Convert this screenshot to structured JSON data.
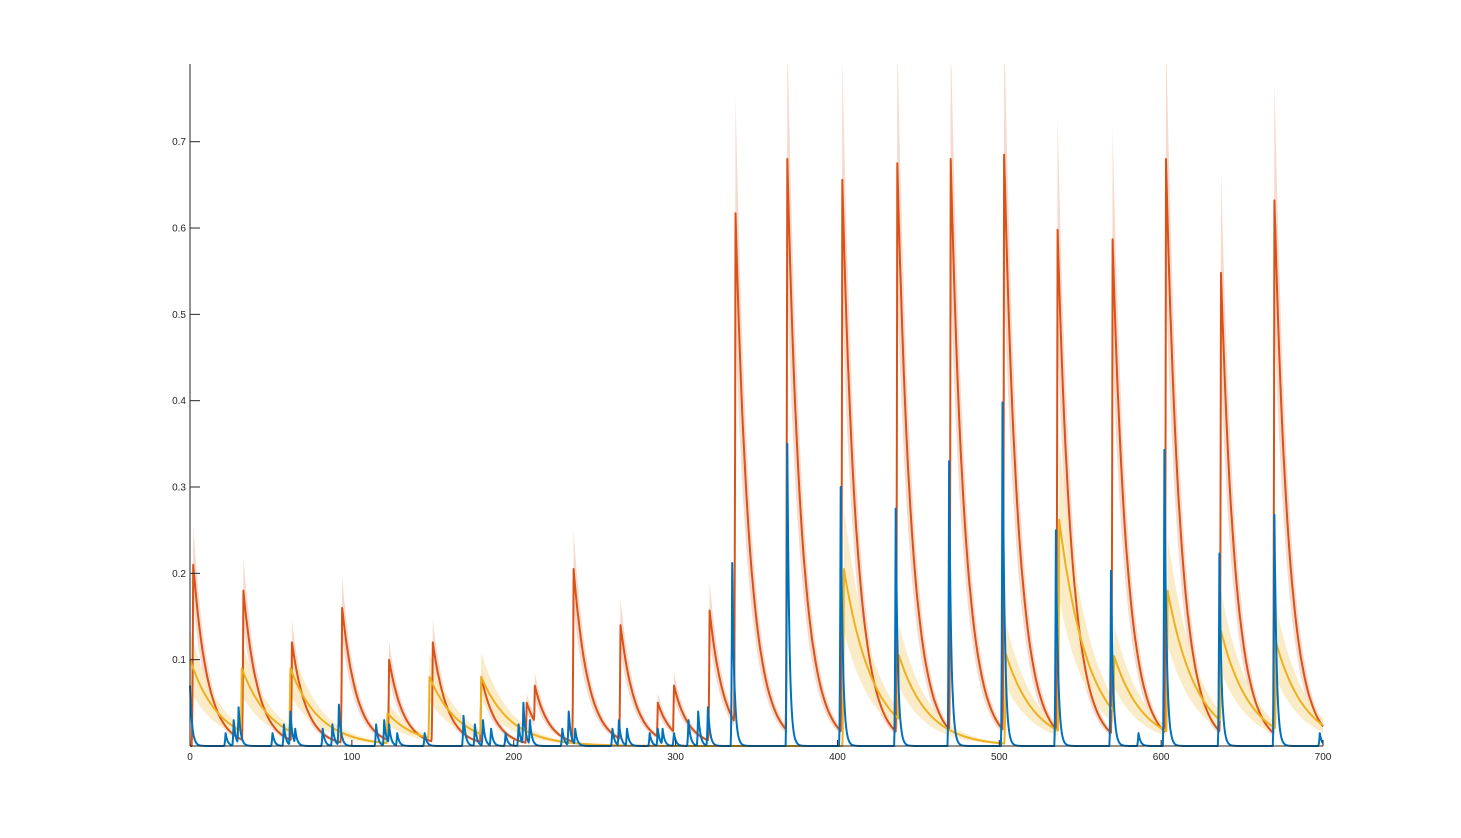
{
  "chart_data": {
    "type": "line",
    "title": "",
    "xlabel": "",
    "ylabel": "",
    "xlim": [
      0,
      700
    ],
    "ylim": [
      0,
      0.79
    ],
    "grid": false,
    "legend": "none",
    "x_ticks": [
      0,
      100,
      200,
      300,
      400,
      500,
      600,
      700
    ],
    "y_ticks": [
      0.1,
      0.2,
      0.3,
      0.4,
      0.5,
      0.6,
      0.7
    ],
    "colors": {
      "series_blue": "#0072BD",
      "series_orange": "#D95319",
      "series_yellow": "#EDB120",
      "band_orange": "#F5D3C4",
      "band_yellow": "#FAE9C0"
    },
    "series": [
      {
        "key": "orange",
        "color": "#D95319",
        "band_color": "#F5D3C4",
        "tau": 9,
        "baseline": 0.0,
        "band_frac": 0.22,
        "peaks": [
          [
            2,
            0.21
          ],
          [
            33,
            0.18
          ],
          [
            63,
            0.12
          ],
          [
            94,
            0.16
          ],
          [
            123,
            0.1
          ],
          [
            150,
            0.12
          ],
          [
            180,
            0.08
          ],
          [
            208,
            0.05
          ],
          [
            213,
            0.07
          ],
          [
            237,
            0.205
          ],
          [
            266,
            0.14
          ],
          [
            289,
            0.05
          ],
          [
            299,
            0.07
          ],
          [
            321,
            0.157
          ],
          [
            337,
            0.617
          ],
          [
            369,
            0.68
          ],
          [
            403,
            0.656
          ],
          [
            437,
            0.675
          ],
          [
            470,
            0.68
          ],
          [
            503,
            0.685
          ],
          [
            536,
            0.598
          ],
          [
            570,
            0.587
          ],
          [
            603,
            0.68
          ],
          [
            637,
            0.548
          ],
          [
            670,
            0.632
          ]
        ]
      },
      {
        "key": "yellow",
        "color": "#EDB120",
        "band_color": "#FAE9C0",
        "tau": 18,
        "baseline": 0.0,
        "band_frac": 0.35,
        "peaks": [
          [
            0,
            0.1
          ],
          [
            32,
            0.09
          ],
          [
            62,
            0.09
          ],
          [
            122,
            0.038
          ],
          [
            148,
            0.08
          ],
          [
            180,
            0.08
          ],
          [
            404,
            0.205
          ],
          [
            438,
            0.105
          ],
          [
            504,
            0.107
          ],
          [
            537,
            0.262
          ],
          [
            571,
            0.104
          ],
          [
            604,
            0.18
          ],
          [
            637,
            0.133
          ],
          [
            671,
            0.12
          ]
        ]
      },
      {
        "key": "blue",
        "color": "#0072BD",
        "band_color": "",
        "tau": 1.3,
        "baseline": 0.0,
        "band_frac": 0,
        "peaks": [
          [
            0,
            0.07
          ],
          [
            22,
            0.015
          ],
          [
            27,
            0.03
          ],
          [
            30,
            0.045
          ],
          [
            51,
            0.015
          ],
          [
            58,
            0.025
          ],
          [
            62,
            0.04
          ],
          [
            65,
            0.02
          ],
          [
            82,
            0.02
          ],
          [
            88,
            0.025
          ],
          [
            92,
            0.048
          ],
          [
            115,
            0.025
          ],
          [
            120,
            0.03
          ],
          [
            123,
            0.025
          ],
          [
            128,
            0.015
          ],
          [
            145,
            0.015
          ],
          [
            169,
            0.035
          ],
          [
            176,
            0.025
          ],
          [
            181,
            0.03
          ],
          [
            186,
            0.02
          ],
          [
            195,
            0.015
          ],
          [
            203,
            0.025
          ],
          [
            206,
            0.05
          ],
          [
            210,
            0.03
          ],
          [
            230,
            0.02
          ],
          [
            234,
            0.04
          ],
          [
            238,
            0.02
          ],
          [
            261,
            0.02
          ],
          [
            265,
            0.03
          ],
          [
            270,
            0.02
          ],
          [
            284,
            0.015
          ],
          [
            289,
            0.02
          ],
          [
            292,
            0.02
          ],
          [
            299,
            0.015
          ],
          [
            308,
            0.03
          ],
          [
            314,
            0.04
          ],
          [
            320,
            0.045
          ],
          [
            335,
            0.212
          ],
          [
            369,
            0.35
          ],
          [
            402,
            0.3
          ],
          [
            436,
            0.275
          ],
          [
            469,
            0.33
          ],
          [
            502,
            0.398
          ],
          [
            535,
            0.25
          ],
          [
            569,
            0.203
          ],
          [
            586,
            0.015
          ],
          [
            602,
            0.343
          ],
          [
            636,
            0.223
          ],
          [
            670,
            0.268
          ],
          [
            698,
            0.015
          ]
        ]
      }
    ]
  }
}
